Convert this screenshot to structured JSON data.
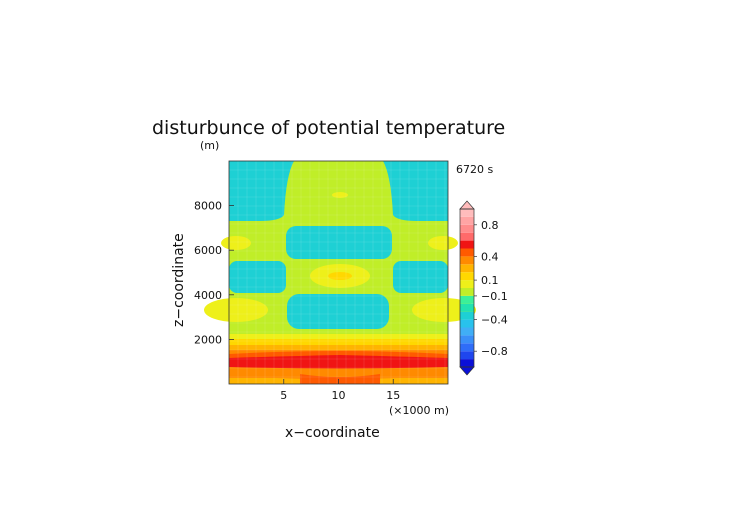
{
  "chart_data": {
    "type": "heatmap",
    "title": "disturbunce of potential temperature",
    "time_label": "6720 s",
    "xlabel": "x−coordinate",
    "ylabel": "z−coordinate",
    "x_unit": "(×1000 m)",
    "y_unit": "(m)",
    "xlim": [
      0,
      20
    ],
    "ylim": [
      0,
      10000
    ],
    "x_ticks": [
      5,
      10,
      15
    ],
    "x_tick_labels": [
      "5",
      "10",
      "15"
    ],
    "y_ticks": [
      2000,
      4000,
      6000,
      8000
    ],
    "y_tick_labels": [
      "2000",
      "4000",
      "6000",
      "8000"
    ],
    "colorbar": {
      "levels": [
        -1.0,
        -0.9,
        -0.8,
        -0.7,
        -0.6,
        -0.5,
        -0.4,
        -0.3,
        -0.2,
        -0.1,
        0,
        0.1,
        0.2,
        0.3,
        0.4,
        0.5,
        0.6,
        0.7,
        0.8,
        0.9,
        1.0
      ],
      "colors": [
        "#0a10d8",
        "#1f46ee",
        "#2f6df8",
        "#3a8ff8",
        "#40aef6",
        "#28c2ec",
        "#1ed0d4",
        "#22e2b0",
        "#3bf09a",
        "#c0ee28",
        "#eef01a",
        "#ffd800",
        "#ffb400",
        "#ff8a00",
        "#ff5a00",
        "#f01414",
        "#ff6a6a",
        "#ff8c8c",
        "#ffa4a4",
        "#ffbcbc"
      ],
      "tick_values": [
        0.8,
        0.4,
        0.1,
        -0.1,
        -0.4,
        -0.8
      ],
      "tick_labels": [
        "0.8",
        "0.4",
        "0.1",
        "−0.1",
        "−0.4",
        "−0.8"
      ]
    },
    "field_regions": [
      {
        "value": 0.05,
        "x": [
          0,
          20
        ],
        "y": [
          0,
          10000
        ]
      },
      {
        "value": -0.3,
        "x": [
          0,
          5
        ],
        "y": [
          8000,
          10000
        ]
      },
      {
        "value": -0.3,
        "x": [
          15,
          20
        ],
        "y": [
          8000,
          10000
        ]
      },
      {
        "value": -0.3,
        "x": [
          5.2,
          14.8
        ],
        "y": [
          5800,
          7000
        ]
      },
      {
        "value": -0.3,
        "x": [
          0,
          4.5
        ],
        "y": [
          4300,
          5800
        ]
      },
      {
        "value": -0.3,
        "x": [
          15.5,
          20
        ],
        "y": [
          4300,
          5800
        ]
      },
      {
        "value": -0.3,
        "x": [
          5,
          15
        ],
        "y": [
          2500,
          4000
        ]
      },
      {
        "value": 0.15,
        "x": [
          7.5,
          12.5
        ],
        "y": [
          4500,
          5200
        ]
      },
      {
        "value": 0.15,
        "x": [
          0,
          2.5
        ],
        "y": [
          2900,
          3700
        ]
      },
      {
        "value": 0.15,
        "x": [
          17.5,
          20
        ],
        "y": [
          2900,
          3700
        ]
      },
      {
        "value": 0.15,
        "x": [
          0,
          1.5
        ],
        "y": [
          6200,
          6800
        ]
      },
      {
        "value": 0.15,
        "x": [
          18.5,
          20
        ],
        "y": [
          6200,
          6800
        ]
      },
      {
        "value": 0.15,
        "x": [
          9.2,
          10.8
        ],
        "y": [
          8400,
          8700
        ]
      },
      {
        "value": 0.45,
        "x": [
          7.5,
          12.5
        ],
        "y": [
          0,
          1500
        ]
      },
      {
        "value": 0.35,
        "x": [
          0,
          20
        ],
        "y": [
          1200,
          1500
        ]
      }
    ]
  }
}
